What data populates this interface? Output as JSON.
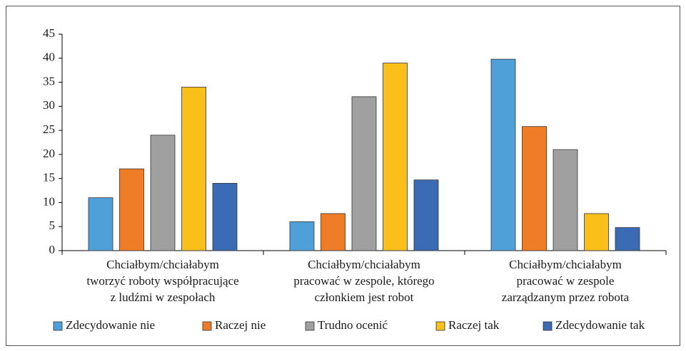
{
  "chart_data": {
    "type": "bar",
    "categories": [
      "Chciałbym/chciałabym\ntworzyć roboty współpracujące\nz ludźmi w zespołach",
      "Chciałbym/chciałabym\npracować w zespole, którego\nczłonkiem jest robot",
      "Chciałbym/chciałabym\npracować w zespole\nzarządzanym przez robota"
    ],
    "series": [
      {
        "name": "Zdecydowanie nie",
        "color": "#4f9fd8",
        "values": [
          11,
          6,
          39.8
        ]
      },
      {
        "name": "Raczej nie",
        "color": "#ef7d28",
        "values": [
          17,
          7.7,
          25.8
        ]
      },
      {
        "name": "Trudno ocenić",
        "color": "#a0a0a0",
        "values": [
          24,
          32,
          21
        ]
      },
      {
        "name": "Raczej tak",
        "color": "#fbbf1a",
        "values": [
          34,
          39,
          7.7
        ]
      },
      {
        "name": "Zdecydowanie tak",
        "color": "#3b6bb5",
        "values": [
          14,
          14.7,
          4.8
        ]
      }
    ],
    "ylim": [
      0,
      45
    ],
    "yticks": [
      0,
      5,
      10,
      15,
      20,
      25,
      30,
      35,
      40,
      45
    ],
    "grid": false,
    "legend": "bottom"
  }
}
